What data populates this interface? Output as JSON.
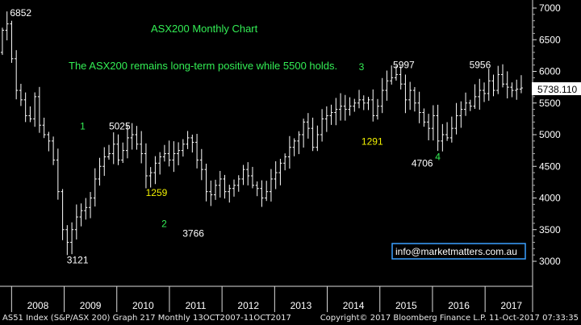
{
  "chart_data": {
    "type": "ohlc",
    "title": "ASX200 Monthly Chart",
    "subtitle": "The ASX200 remains long-term positive while 5500 holds.",
    "ylim": [
      2700,
      7050
    ],
    "y_ticks": [
      3000,
      3500,
      4000,
      4500,
      5000,
      5500,
      6000,
      6500,
      7000
    ],
    "x_labels": [
      "2008",
      "2009",
      "2010",
      "2011",
      "2012",
      "2013",
      "2014",
      "2015",
      "2016",
      "2017"
    ],
    "last_price": "5738.110",
    "contact": "info@marketmatters.com.au",
    "colors": {
      "bars": "#ffffff",
      "title": "#33ee55",
      "wave_label": "#33ee55",
      "yellow_label": "#f2f200",
      "value_label": "#ffffff",
      "contact_border": "#3aa0ff"
    },
    "closes": [
      6650,
      6750,
      6200,
      5700,
      5550,
      5300,
      5250,
      5600,
      5150,
      5000,
      4900,
      4600,
      4100,
      3500,
      3300,
      3500,
      3700,
      3800,
      3850,
      4000,
      4300,
      4500,
      4650,
      4700,
      4850,
      4600,
      4750,
      4950,
      5000,
      4850,
      4700,
      4350,
      4400,
      4550,
      4650,
      4700,
      4600,
      4700,
      4750,
      4850,
      4950,
      4880,
      4600,
      4450,
      4100,
      4050,
      4200,
      4300,
      4100,
      4150,
      4200,
      4300,
      4450,
      4350,
      4200,
      4150,
      4000,
      4100,
      4300,
      4400,
      4550,
      4650,
      4800,
      4900,
      5000,
      5200,
      5100,
      4800,
      5000,
      5250,
      5300,
      5350,
      5400,
      5450,
      5400,
      5450,
      5500,
      5550,
      5500,
      5550,
      5300,
      5450,
      5700,
      5850,
      5900,
      5950,
      5800,
      5550,
      5700,
      5500,
      5350,
      5200,
      5100,
      5300,
      4900,
      5000,
      4950,
      5100,
      5300,
      5400,
      5500,
      5450,
      5600,
      5700,
      5650,
      5850,
      5700,
      5950,
      5800,
      5750,
      5700,
      5720,
      5738
    ],
    "annotations": [
      {
        "text": "6852",
        "kind": "value",
        "x": 2007.97,
        "y": 6870
      },
      {
        "text": "1",
        "kind": "wave",
        "x": 2009.3,
        "y": 5080
      },
      {
        "text": "5025",
        "kind": "value",
        "x": 2009.85,
        "y": 5080
      },
      {
        "text": "1259",
        "kind": "yellow",
        "x": 2010.55,
        "y": 4030
      },
      {
        "text": "2",
        "kind": "wave",
        "x": 2010.85,
        "y": 3540
      },
      {
        "text": "3766",
        "kind": "value",
        "x": 2011.25,
        "y": 3390
      },
      {
        "text": "3121",
        "kind": "value",
        "x": 2009.05,
        "y": 2970
      },
      {
        "text": "3",
        "kind": "wave",
        "x": 2014.6,
        "y": 6020
      },
      {
        "text": "5997",
        "kind": "value",
        "x": 2015.25,
        "y": 6050
      },
      {
        "text": "1291",
        "kind": "yellow",
        "x": 2014.65,
        "y": 4840
      },
      {
        "text": "4706",
        "kind": "value",
        "x": 2015.6,
        "y": 4500
      },
      {
        "text": "4",
        "kind": "wave",
        "x": 2016.05,
        "y": 4600
      },
      {
        "text": "5956",
        "kind": "value",
        "x": 2016.7,
        "y": 6050
      }
    ]
  },
  "footer": {
    "left": "AS51 Index (S&P/ASX 200) Graph 217  Monthly 13OCT2007-11OCT2017",
    "right": "Copyright© 2017 Bloomberg Finance L.P.    11-Oct-2017 07:33:35"
  }
}
